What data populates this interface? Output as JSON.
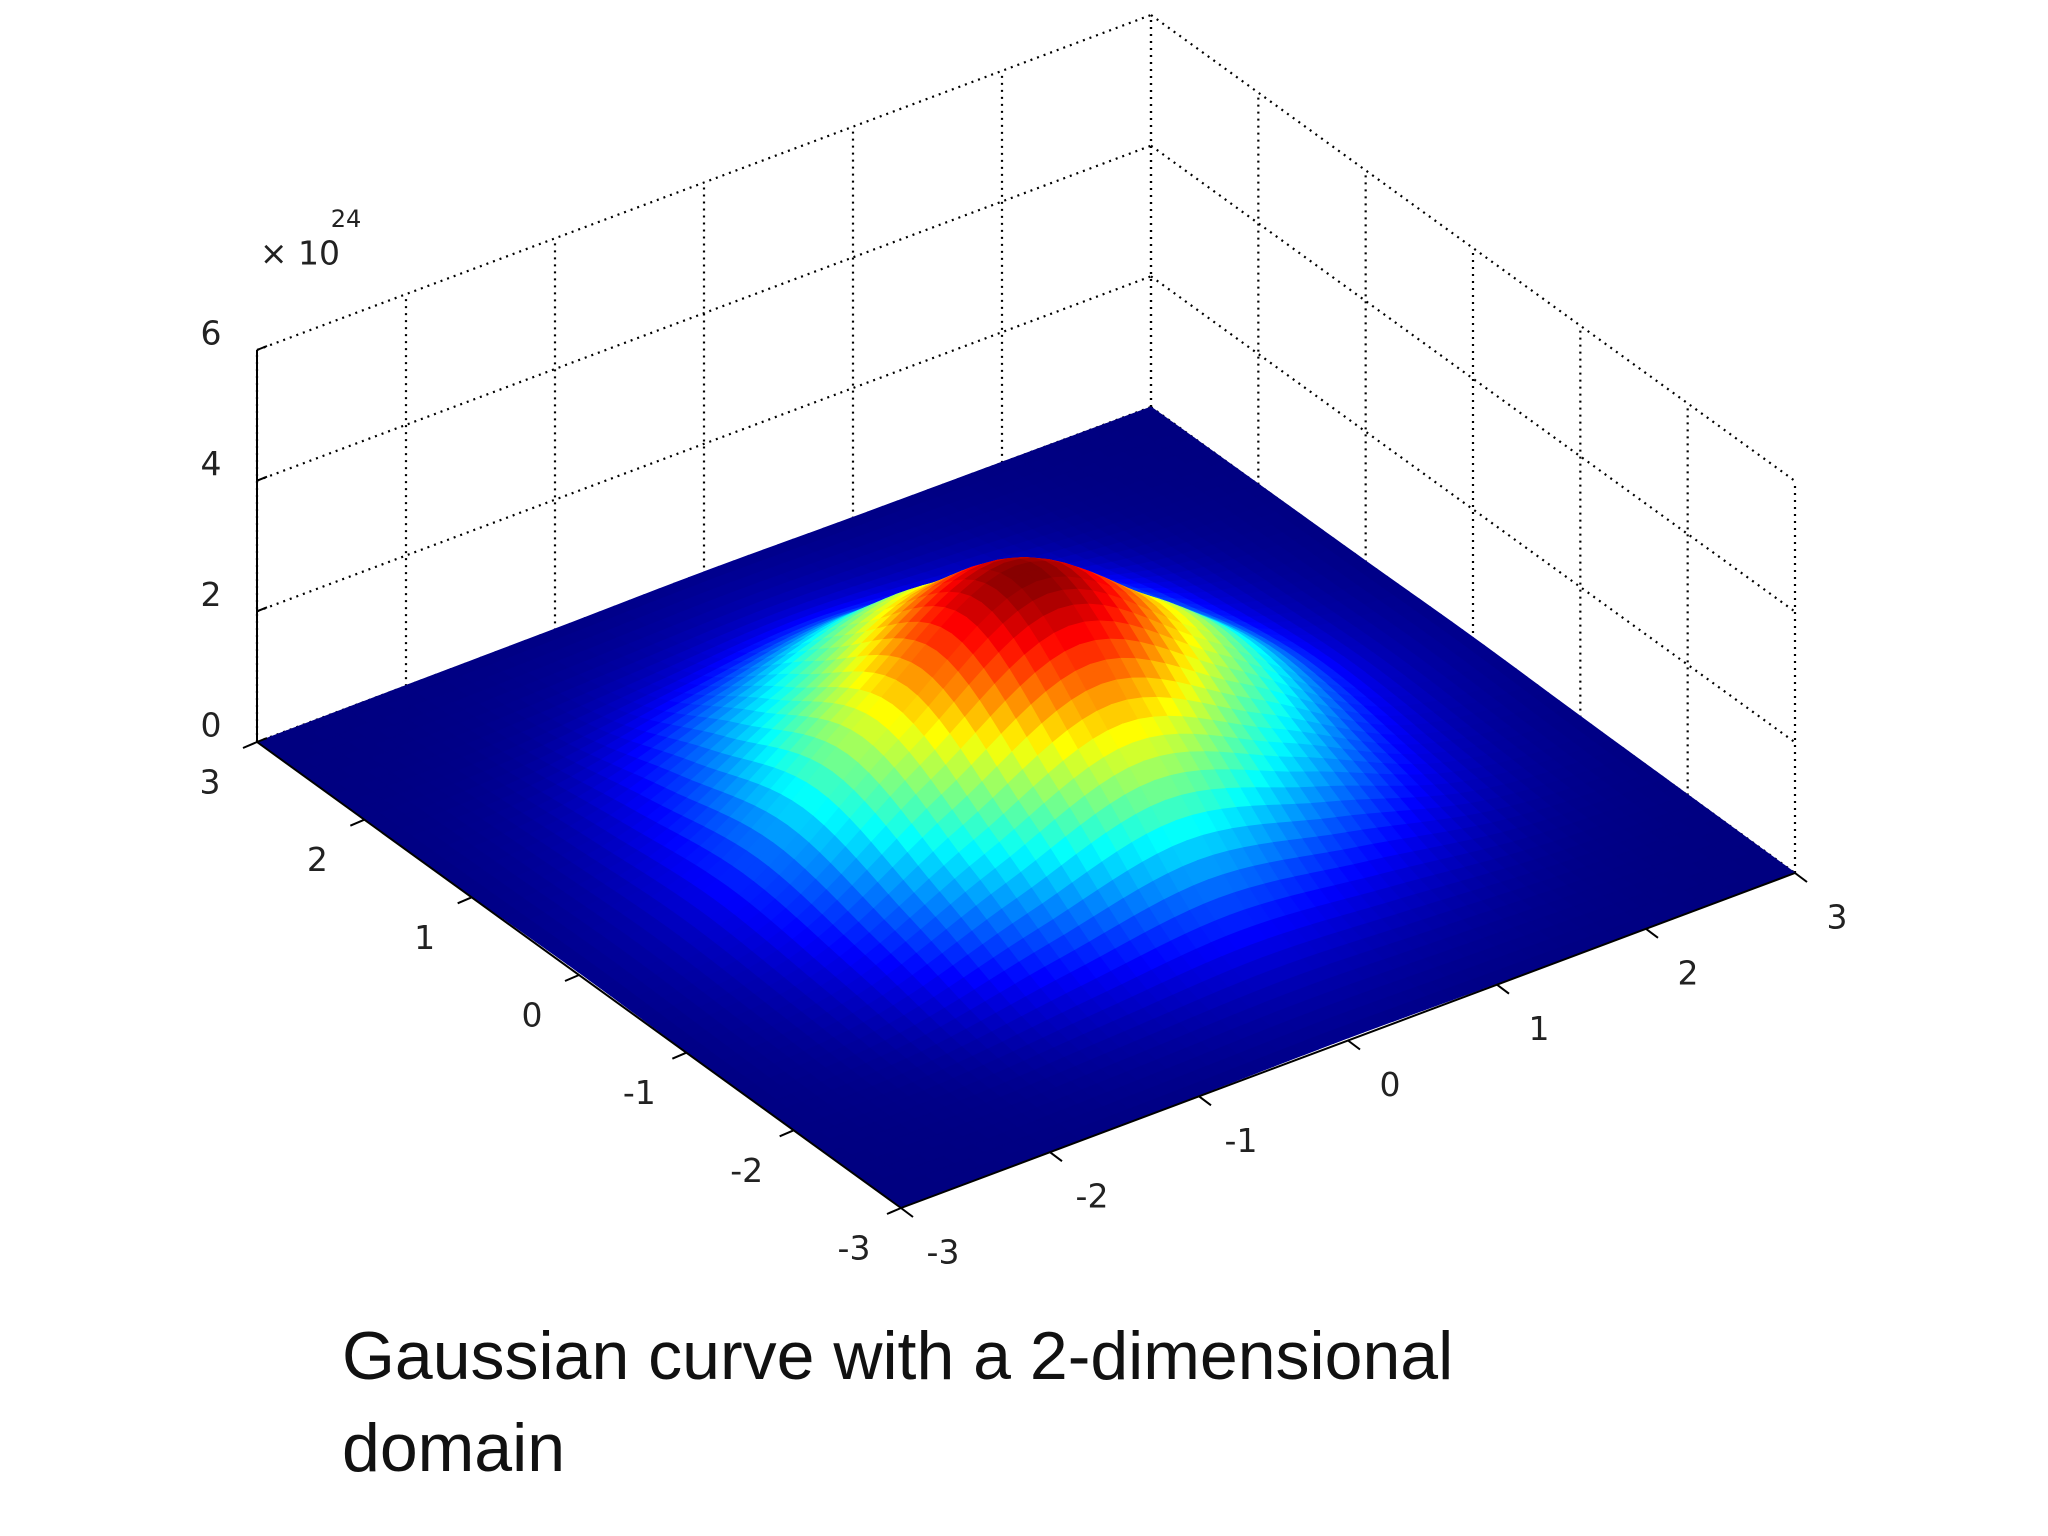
{
  "chart_data": {
    "type": "surface",
    "caption": "Gaussian curve with a 2-dimensional domain",
    "z_multiplier": "× 10",
    "z_exponent": "24",
    "colormap": "jet",
    "x": [
      -3,
      -2,
      -1,
      0,
      1,
      2,
      3
    ],
    "y": [
      -3,
      -2,
      -1,
      0,
      1,
      2,
      3
    ],
    "z": [
      [
        0,
        0.01,
        0.02,
        0.04,
        0.02,
        0.01,
        0
      ],
      [
        0.01,
        0.07,
        0.3,
        0.49,
        0.3,
        0.07,
        0.01
      ],
      [
        0.02,
        0.3,
        1.32,
        2.18,
        1.32,
        0.3,
        0.02
      ],
      [
        0.04,
        0.49,
        2.18,
        3.6,
        2.18,
        0.49,
        0.04
      ],
      [
        0.02,
        0.3,
        1.32,
        2.18,
        1.32,
        0.3,
        0.02
      ],
      [
        0.01,
        0.07,
        0.3,
        0.49,
        0.3,
        0.07,
        0.01
      ],
      [
        0,
        0.01,
        0.02,
        0.04,
        0.02,
        0.01,
        0
      ]
    ],
    "xlim": [
      -3,
      3
    ],
    "ylim": [
      -3,
      3
    ],
    "zlim": [
      0,
      6
    ],
    "xticks": [
      -3,
      -2,
      -1,
      0,
      1,
      2,
      3
    ],
    "yticks": [
      -3,
      -2,
      -1,
      0,
      1,
      2,
      3
    ],
    "zticks": [
      0,
      2,
      4,
      6
    ],
    "grid": true
  }
}
